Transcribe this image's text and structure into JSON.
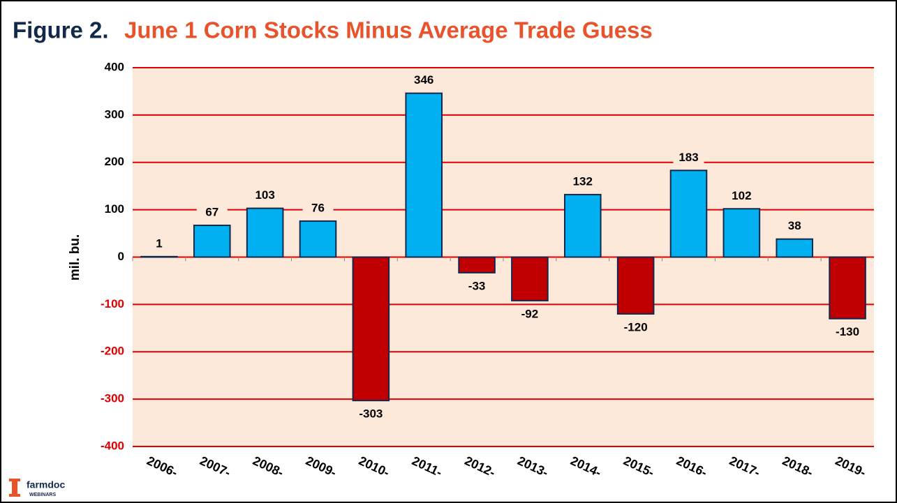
{
  "chart_data": {
    "type": "bar",
    "title_prefix": "Figure 2.",
    "title": "June 1 Corn Stocks Minus Average Trade Guess",
    "y_label": "mil. bu.",
    "categories": [
      "2006-",
      "2007-",
      "2008-",
      "2009-",
      "2010-",
      "2011-",
      "2012-",
      "2013-",
      "2014-",
      "2015-",
      "2016-",
      "2017-",
      "2018-",
      "2019-"
    ],
    "values": [
      1,
      67,
      103,
      76,
      -303,
      346,
      -33,
      -92,
      132,
      -120,
      183,
      102,
      38,
      -130
    ],
    "positive_color": "#00b0f0",
    "negative_color": "#c00000",
    "ylim": [
      -400,
      400
    ],
    "yticks": [
      -400,
      -300,
      -200,
      -100,
      0,
      100,
      200,
      300,
      400
    ],
    "grid": true,
    "grid_color": "#e00000",
    "plot_background": "#fde9d9",
    "logo": {
      "name": "farmdoc",
      "sub": "WEBINARS"
    }
  }
}
